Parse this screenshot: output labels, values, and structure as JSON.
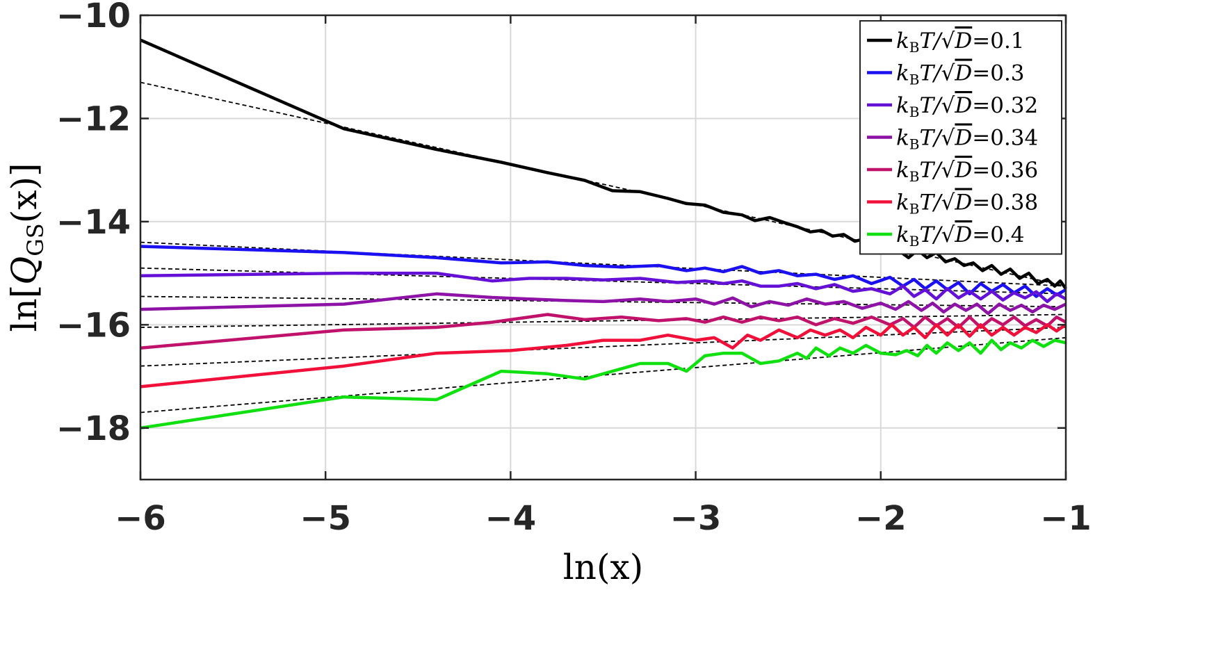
{
  "chart_data": {
    "type": "line",
    "xlabel": "ln(x)",
    "ylabel_parts": {
      "pre": "ln[",
      "q": "Q",
      "sub": "GS",
      "post": "(x)]"
    },
    "xlim": [
      -6,
      -1
    ],
    "ylim": [
      -19,
      -10
    ],
    "xticks": [
      -6,
      -5,
      -4,
      -3,
      -2,
      -1
    ],
    "yticks": [
      -18,
      -16,
      -14,
      -12,
      -10
    ],
    "xtick_labels": [
      "−6",
      "−5",
      "−4",
      "−3",
      "−2",
      "−1"
    ],
    "ytick_labels": [
      "−18",
      "−16",
      "−14",
      "−12",
      "−10"
    ],
    "grid": true,
    "legend_position": "top-right",
    "legend_prefix": {
      "k": "k",
      "kb_sub": "B",
      "t": "T/",
      "d": "D",
      "eq": "="
    },
    "series": [
      {
        "name": "0.1",
        "color": "#000000",
        "points": [
          [
            -6,
            -10.48
          ],
          [
            -4.9,
            -12.2
          ],
          [
            -4.4,
            -12.6
          ],
          [
            -4.05,
            -12.85
          ],
          [
            -3.8,
            -13.05
          ],
          [
            -3.6,
            -13.2
          ],
          [
            -3.45,
            -13.4
          ],
          [
            -3.3,
            -13.42
          ],
          [
            -3.15,
            -13.55
          ],
          [
            -3.05,
            -13.65
          ],
          [
            -2.95,
            -13.68
          ],
          [
            -2.85,
            -13.82
          ],
          [
            -2.75,
            -13.87
          ],
          [
            -2.68,
            -13.98
          ],
          [
            -2.6,
            -13.92
          ],
          [
            -2.52,
            -14.02
          ],
          [
            -2.45,
            -14.1
          ],
          [
            -2.38,
            -14.2
          ],
          [
            -2.32,
            -14.17
          ],
          [
            -2.26,
            -14.28
          ],
          [
            -2.2,
            -14.25
          ],
          [
            -2.14,
            -14.38
          ],
          [
            -2.08,
            -14.33
          ],
          [
            -2.02,
            -14.48
          ],
          [
            -1.96,
            -14.42
          ],
          [
            -1.92,
            -14.55
          ],
          [
            -1.88,
            -14.62
          ],
          [
            -1.85,
            -14.7
          ],
          [
            -1.8,
            -14.55
          ],
          [
            -1.75,
            -14.7
          ],
          [
            -1.7,
            -14.6
          ],
          [
            -1.65,
            -14.78
          ],
          [
            -1.6,
            -14.72
          ],
          [
            -1.55,
            -14.85
          ],
          [
            -1.5,
            -14.8
          ],
          [
            -1.45,
            -14.95
          ],
          [
            -1.4,
            -14.85
          ],
          [
            -1.35,
            -15.02
          ],
          [
            -1.3,
            -14.92
          ],
          [
            -1.25,
            -15.1
          ],
          [
            -1.2,
            -15.0
          ],
          [
            -1.15,
            -15.2
          ],
          [
            -1.1,
            -15.12
          ],
          [
            -1.06,
            -15.25
          ],
          [
            -1.03,
            -15.15
          ],
          [
            -1.0,
            -15.3
          ]
        ]
      },
      {
        "name": "0.3",
        "color": "#1a10f0",
        "points": [
          [
            -6,
            -14.48
          ],
          [
            -4.9,
            -14.6
          ],
          [
            -4.4,
            -14.7
          ],
          [
            -4.05,
            -14.8
          ],
          [
            -3.8,
            -14.78
          ],
          [
            -3.6,
            -14.85
          ],
          [
            -3.4,
            -14.88
          ],
          [
            -3.2,
            -14.85
          ],
          [
            -3.05,
            -14.95
          ],
          [
            -2.95,
            -14.9
          ],
          [
            -2.85,
            -14.97
          ],
          [
            -2.75,
            -14.87
          ],
          [
            -2.65,
            -15.0
          ],
          [
            -2.55,
            -14.95
          ],
          [
            -2.45,
            -15.05
          ],
          [
            -2.35,
            -15.02
          ],
          [
            -2.25,
            -15.12
          ],
          [
            -2.15,
            -15.05
          ],
          [
            -2.05,
            -15.2
          ],
          [
            -1.95,
            -15.08
          ],
          [
            -1.88,
            -15.25
          ],
          [
            -1.82,
            -15.12
          ],
          [
            -1.76,
            -15.3
          ],
          [
            -1.7,
            -15.15
          ],
          [
            -1.64,
            -15.32
          ],
          [
            -1.58,
            -15.18
          ],
          [
            -1.52,
            -15.4
          ],
          [
            -1.46,
            -15.2
          ],
          [
            -1.4,
            -15.35
          ],
          [
            -1.34,
            -15.22
          ],
          [
            -1.28,
            -15.38
          ],
          [
            -1.22,
            -15.25
          ],
          [
            -1.16,
            -15.45
          ],
          [
            -1.1,
            -15.3
          ],
          [
            -1.05,
            -15.42
          ],
          [
            -1.0,
            -15.32
          ]
        ]
      },
      {
        "name": "0.32",
        "color": "#6510d6",
        "points": [
          [
            -6,
            -15.05
          ],
          [
            -4.9,
            -15.0
          ],
          [
            -4.4,
            -15.0
          ],
          [
            -4.1,
            -15.15
          ],
          [
            -3.9,
            -15.1
          ],
          [
            -3.7,
            -15.1
          ],
          [
            -3.5,
            -15.13
          ],
          [
            -3.3,
            -15.1
          ],
          [
            -3.1,
            -15.18
          ],
          [
            -2.95,
            -15.15
          ],
          [
            -2.85,
            -15.2
          ],
          [
            -2.75,
            -15.15
          ],
          [
            -2.65,
            -15.25
          ],
          [
            -2.55,
            -15.25
          ],
          [
            -2.45,
            -15.2
          ],
          [
            -2.35,
            -15.3
          ],
          [
            -2.25,
            -15.22
          ],
          [
            -2.15,
            -15.35
          ],
          [
            -2.05,
            -15.3
          ],
          [
            -1.95,
            -15.4
          ],
          [
            -1.88,
            -15.25
          ],
          [
            -1.82,
            -15.45
          ],
          [
            -1.76,
            -15.32
          ],
          [
            -1.7,
            -15.5
          ],
          [
            -1.64,
            -15.3
          ],
          [
            -1.58,
            -15.48
          ],
          [
            -1.52,
            -15.35
          ],
          [
            -1.46,
            -15.5
          ],
          [
            -1.4,
            -15.35
          ],
          [
            -1.34,
            -15.52
          ],
          [
            -1.28,
            -15.38
          ],
          [
            -1.22,
            -15.48
          ],
          [
            -1.16,
            -15.36
          ],
          [
            -1.1,
            -15.55
          ],
          [
            -1.05,
            -15.4
          ],
          [
            -1.0,
            -15.5
          ]
        ]
      },
      {
        "name": "0.34",
        "color": "#8e12a6",
        "points": [
          [
            -6,
            -15.7
          ],
          [
            -4.9,
            -15.6
          ],
          [
            -4.4,
            -15.4
          ],
          [
            -4.1,
            -15.47
          ],
          [
            -3.9,
            -15.5
          ],
          [
            -3.7,
            -15.53
          ],
          [
            -3.5,
            -15.55
          ],
          [
            -3.3,
            -15.5
          ],
          [
            -3.15,
            -15.55
          ],
          [
            -3.0,
            -15.5
          ],
          [
            -2.9,
            -15.6
          ],
          [
            -2.8,
            -15.48
          ],
          [
            -2.7,
            -15.65
          ],
          [
            -2.6,
            -15.55
          ],
          [
            -2.5,
            -15.62
          ],
          [
            -2.4,
            -15.5
          ],
          [
            -2.3,
            -15.6
          ],
          [
            -2.2,
            -15.55
          ],
          [
            -2.1,
            -15.68
          ],
          [
            -2.0,
            -15.58
          ],
          [
            -1.92,
            -15.7
          ],
          [
            -1.85,
            -15.55
          ],
          [
            -1.78,
            -15.72
          ],
          [
            -1.72,
            -15.58
          ],
          [
            -1.66,
            -15.75
          ],
          [
            -1.6,
            -15.6
          ],
          [
            -1.54,
            -15.72
          ],
          [
            -1.48,
            -15.6
          ],
          [
            -1.42,
            -15.78
          ],
          [
            -1.36,
            -15.6
          ],
          [
            -1.3,
            -15.72
          ],
          [
            -1.24,
            -15.62
          ],
          [
            -1.18,
            -15.75
          ],
          [
            -1.12,
            -15.62
          ],
          [
            -1.06,
            -15.7
          ],
          [
            -1.0,
            -15.6
          ]
        ]
      },
      {
        "name": "0.36",
        "color": "#c0126a",
        "points": [
          [
            -6,
            -16.45
          ],
          [
            -4.9,
            -16.1
          ],
          [
            -4.4,
            -16.05
          ],
          [
            -4.1,
            -15.95
          ],
          [
            -3.8,
            -15.8
          ],
          [
            -3.6,
            -15.9
          ],
          [
            -3.4,
            -15.85
          ],
          [
            -3.2,
            -15.92
          ],
          [
            -3.05,
            -15.88
          ],
          [
            -2.95,
            -15.95
          ],
          [
            -2.85,
            -15.85
          ],
          [
            -2.75,
            -15.95
          ],
          [
            -2.65,
            -15.85
          ],
          [
            -2.55,
            -15.92
          ],
          [
            -2.45,
            -15.85
          ],
          [
            -2.35,
            -16.0
          ],
          [
            -2.25,
            -15.88
          ],
          [
            -2.15,
            -15.97
          ],
          [
            -2.05,
            -15.85
          ],
          [
            -1.95,
            -16.0
          ],
          [
            -1.88,
            -15.88
          ],
          [
            -1.82,
            -16.05
          ],
          [
            -1.76,
            -15.85
          ],
          [
            -1.7,
            -16.02
          ],
          [
            -1.64,
            -15.88
          ],
          [
            -1.58,
            -16.05
          ],
          [
            -1.52,
            -15.85
          ],
          [
            -1.46,
            -16.05
          ],
          [
            -1.4,
            -15.88
          ],
          [
            -1.34,
            -16.0
          ],
          [
            -1.28,
            -15.85
          ],
          [
            -1.22,
            -16.02
          ],
          [
            -1.16,
            -15.9
          ],
          [
            -1.1,
            -16.02
          ],
          [
            -1.05,
            -15.85
          ],
          [
            -1.0,
            -15.95
          ]
        ]
      },
      {
        "name": "0.38",
        "color": "#f0103a",
        "points": [
          [
            -6,
            -17.2
          ],
          [
            -4.9,
            -16.8
          ],
          [
            -4.4,
            -16.55
          ],
          [
            -4.0,
            -16.5
          ],
          [
            -3.7,
            -16.4
          ],
          [
            -3.5,
            -16.3
          ],
          [
            -3.3,
            -16.3
          ],
          [
            -3.15,
            -16.2
          ],
          [
            -3.0,
            -16.3
          ],
          [
            -2.9,
            -16.25
          ],
          [
            -2.8,
            -16.45
          ],
          [
            -2.72,
            -16.2
          ],
          [
            -2.65,
            -16.3
          ],
          [
            -2.55,
            -16.1
          ],
          [
            -2.45,
            -16.25
          ],
          [
            -2.38,
            -16.1
          ],
          [
            -2.3,
            -16.2
          ],
          [
            -2.22,
            -16.1
          ],
          [
            -2.15,
            -16.25
          ],
          [
            -2.08,
            -16.05
          ],
          [
            -2.0,
            -16.2
          ],
          [
            -1.94,
            -16.0
          ],
          [
            -1.88,
            -16.2
          ],
          [
            -1.82,
            -16.05
          ],
          [
            -1.76,
            -16.25
          ],
          [
            -1.7,
            -16.0
          ],
          [
            -1.64,
            -16.2
          ],
          [
            -1.58,
            -16.0
          ],
          [
            -1.52,
            -16.22
          ],
          [
            -1.46,
            -16.0
          ],
          [
            -1.4,
            -16.2
          ],
          [
            -1.34,
            -16.05
          ],
          [
            -1.28,
            -16.2
          ],
          [
            -1.22,
            -16.05
          ],
          [
            -1.16,
            -16.15
          ],
          [
            -1.1,
            -16.0
          ],
          [
            -1.05,
            -16.12
          ],
          [
            -1.0,
            -16.0
          ]
        ]
      },
      {
        "name": "0.4",
        "color": "#10e010",
        "points": [
          [
            -6,
            -18.0
          ],
          [
            -4.9,
            -17.4
          ],
          [
            -4.4,
            -17.45
          ],
          [
            -4.05,
            -16.9
          ],
          [
            -3.8,
            -16.95
          ],
          [
            -3.6,
            -17.05
          ],
          [
            -3.3,
            -16.75
          ],
          [
            -3.15,
            -16.75
          ],
          [
            -3.05,
            -16.9
          ],
          [
            -2.95,
            -16.6
          ],
          [
            -2.85,
            -16.55
          ],
          [
            -2.75,
            -16.55
          ],
          [
            -2.65,
            -16.75
          ],
          [
            -2.55,
            -16.7
          ],
          [
            -2.45,
            -16.55
          ],
          [
            -2.4,
            -16.65
          ],
          [
            -2.35,
            -16.45
          ],
          [
            -2.28,
            -16.6
          ],
          [
            -2.22,
            -16.45
          ],
          [
            -2.15,
            -16.55
          ],
          [
            -2.08,
            -16.4
          ],
          [
            -2.0,
            -16.55
          ],
          [
            -1.92,
            -16.58
          ],
          [
            -1.86,
            -16.5
          ],
          [
            -1.8,
            -16.6
          ],
          [
            -1.75,
            -16.4
          ],
          [
            -1.7,
            -16.55
          ],
          [
            -1.64,
            -16.35
          ],
          [
            -1.58,
            -16.5
          ],
          [
            -1.52,
            -16.35
          ],
          [
            -1.46,
            -16.55
          ],
          [
            -1.4,
            -16.3
          ],
          [
            -1.35,
            -16.48
          ],
          [
            -1.3,
            -16.35
          ],
          [
            -1.24,
            -16.45
          ],
          [
            -1.18,
            -16.3
          ],
          [
            -1.12,
            -16.42
          ],
          [
            -1.06,
            -16.3
          ],
          [
            -1.0,
            -16.35
          ]
        ]
      }
    ],
    "fits": [
      {
        "x": [
          -6,
          -1
        ],
        "y": [
          -11.3,
          -15.25
        ]
      },
      {
        "x": [
          -6,
          -1
        ],
        "y": [
          -14.4,
          -15.25
        ]
      },
      {
        "x": [
          -6,
          -1
        ],
        "y": [
          -14.9,
          -15.4
        ]
      },
      {
        "x": [
          -6,
          -1
        ],
        "y": [
          -15.45,
          -15.65
        ]
      },
      {
        "x": [
          -6,
          -1
        ],
        "y": [
          -16.05,
          -15.8
        ]
      },
      {
        "x": [
          -6,
          -1
        ],
        "y": [
          -16.8,
          -16.05
        ]
      },
      {
        "x": [
          -6,
          -1
        ],
        "y": [
          -17.7,
          -16.25
        ]
      }
    ]
  }
}
